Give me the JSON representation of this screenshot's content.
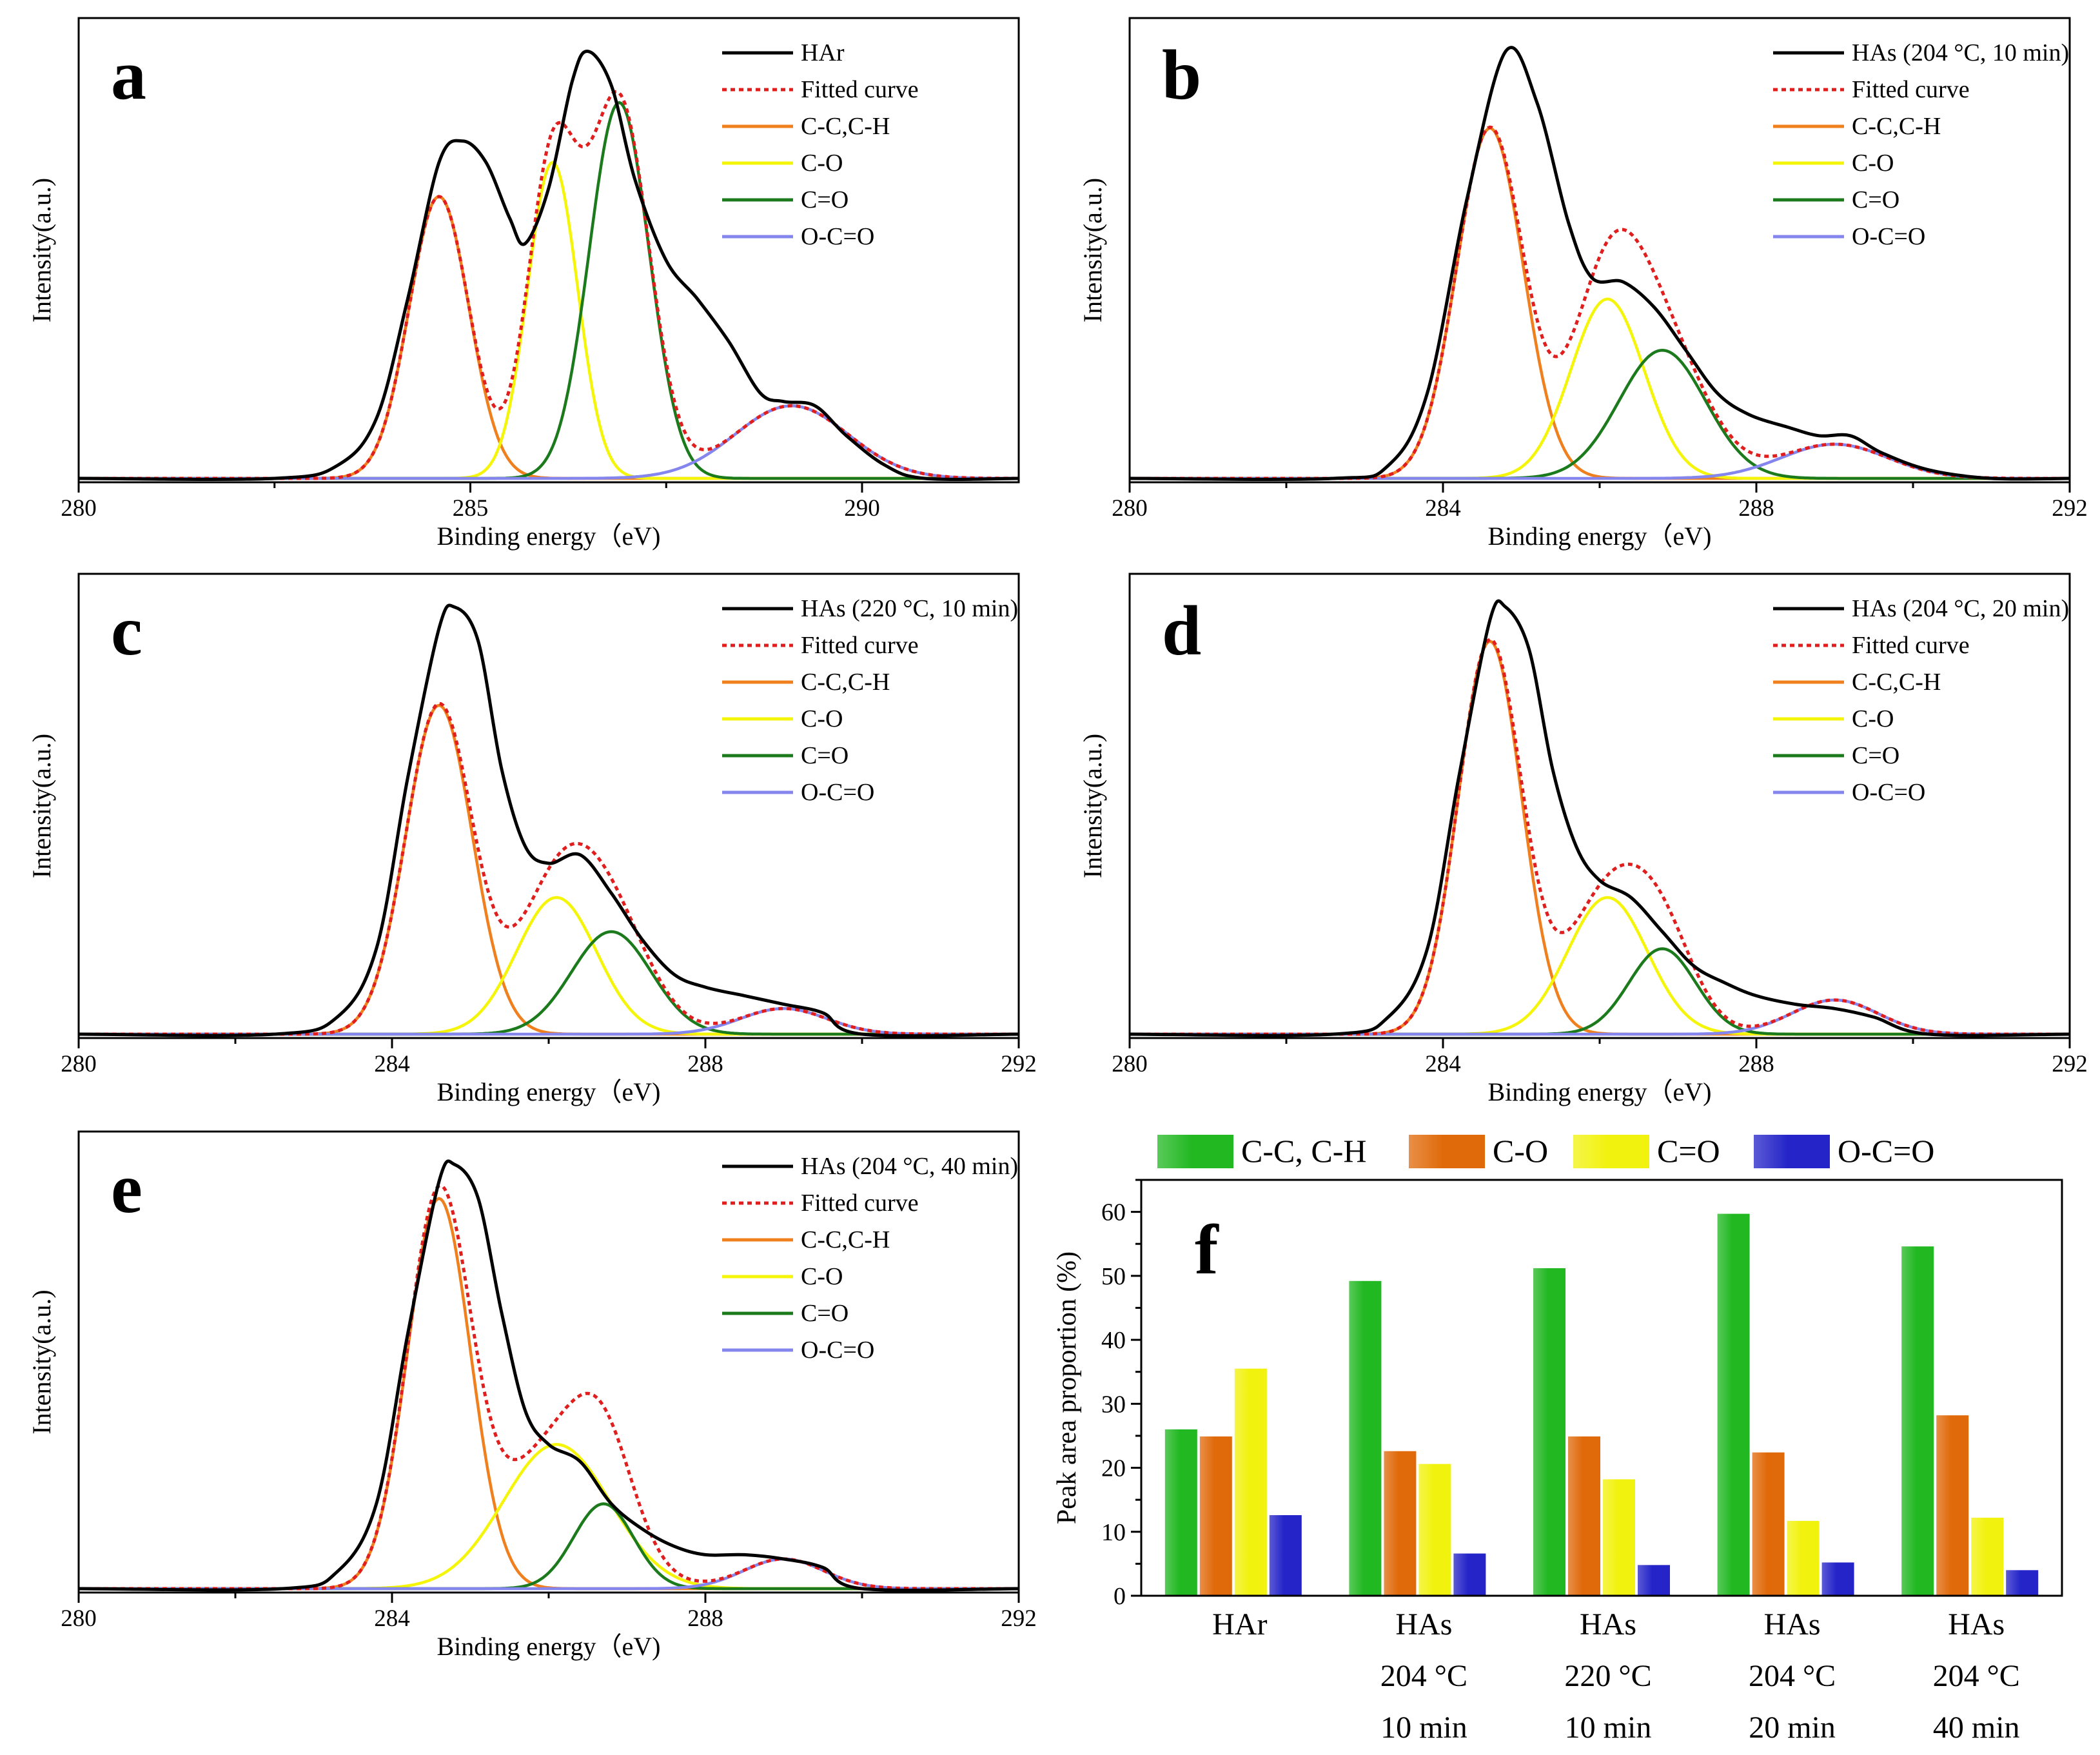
{
  "colors": {
    "frame": "#000000",
    "cc": "#f07f1e",
    "co": "#f5f50a",
    "cdo": "#1b7a1b",
    "oco": "#8585ee",
    "fit": "#e01e1e",
    "bar_cc": "#22b822",
    "bar_co": "#e06a0a",
    "bar_cdo": "#f2f20f",
    "bar_oco": "#2424c8"
  },
  "chart_data": [
    {
      "type": "line",
      "panel": "a",
      "xlabel": "Binding energy（eV)",
      "ylabel": "Intensity(a.u.)",
      "xlim": [
        280,
        292
      ],
      "xticks": [
        280,
        285,
        290
      ],
      "legend_position": "top-right",
      "legend": [
        "HAr",
        "Fitted curve",
        "C-C,C-H",
        "C-O",
        "C=O",
        "O-C=O"
      ],
      "components": [
        {
          "name": "C-C,C-H",
          "center": 284.6,
          "height": 0.66,
          "fwhm": 0.9
        },
        {
          "name": "C-O",
          "center": 286.05,
          "height": 0.74,
          "fwhm": 0.75
        },
        {
          "name": "C=O",
          "center": 286.9,
          "height": 0.88,
          "fwhm": 0.9
        },
        {
          "name": "O-C=O",
          "center": 289.1,
          "height": 0.17,
          "fwhm": 1.7
        }
      ],
      "measured": {
        "name": "HAr",
        "x": [
          280,
          282.5,
          283.3,
          283.8,
          284.2,
          284.6,
          284.9,
          285.2,
          285.5,
          285.7,
          286.0,
          286.3,
          286.5,
          286.8,
          287.1,
          287.5,
          287.9,
          288.3,
          288.7,
          289.0,
          289.4,
          289.8,
          290.3,
          290.8,
          292
        ],
        "y": [
          0.0,
          0.0,
          0.03,
          0.14,
          0.42,
          0.74,
          0.79,
          0.74,
          0.61,
          0.55,
          0.68,
          0.93,
          1.0,
          0.92,
          0.7,
          0.51,
          0.42,
          0.32,
          0.2,
          0.18,
          0.17,
          0.1,
          0.03,
          0.0,
          0.0
        ]
      }
    },
    {
      "type": "line",
      "panel": "b",
      "xlabel": "Binding energy（eV)",
      "ylabel": "Intensity(a.u.)",
      "xlim": [
        280,
        292
      ],
      "xticks": [
        280,
        284,
        288,
        292
      ],
      "legend_position": "top-right",
      "legend": [
        "HAs (204 °C, 10 min)",
        "Fitted curve",
        "C-C,C-H",
        "C-O",
        "C=O",
        "O-C=O"
      ],
      "components": [
        {
          "name": "C-C,C-H",
          "center": 284.6,
          "height": 0.82,
          "fwhm": 1.0
        },
        {
          "name": "C-O",
          "center": 286.1,
          "height": 0.42,
          "fwhm": 1.1
        },
        {
          "name": "C=O",
          "center": 286.8,
          "height": 0.3,
          "fwhm": 1.3
        },
        {
          "name": "O-C=O",
          "center": 289.0,
          "height": 0.08,
          "fwhm": 1.6
        }
      ],
      "measured": {
        "name": "HAs (204 °C, 10 min)",
        "x": [
          280,
          282.6,
          283.3,
          283.8,
          284.3,
          284.8,
          285.2,
          285.6,
          285.9,
          286.3,
          286.7,
          287.1,
          287.5,
          287.9,
          288.4,
          288.8,
          289.2,
          289.6,
          290.2,
          291,
          292
        ],
        "y": [
          0.0,
          0.0,
          0.03,
          0.2,
          0.65,
          1.0,
          0.88,
          0.6,
          0.47,
          0.46,
          0.4,
          0.3,
          0.2,
          0.15,
          0.12,
          0.1,
          0.1,
          0.06,
          0.02,
          0.0,
          0.0
        ]
      }
    },
    {
      "type": "line",
      "panel": "c",
      "xlabel": "Binding energy（eV)",
      "ylabel": "Intensity(a.u.)",
      "xlim": [
        280,
        292
      ],
      "xticks": [
        280,
        284,
        288,
        292
      ],
      "legend_position": "top-right",
      "legend": [
        "HAs (220 °C, 10 min)",
        "Fitted curve",
        "C-C,C-H",
        "C-O",
        "C=O",
        "O-C=O"
      ],
      "components": [
        {
          "name": "C-C,C-H",
          "center": 284.6,
          "height": 0.77,
          "fwhm": 1.0
        },
        {
          "name": "C-O",
          "center": 286.1,
          "height": 0.32,
          "fwhm": 1.2
        },
        {
          "name": "C=O",
          "center": 286.8,
          "height": 0.24,
          "fwhm": 1.2
        },
        {
          "name": "O-C=O",
          "center": 289.0,
          "height": 0.06,
          "fwhm": 1.3
        }
      ],
      "measured": {
        "name": "HAs (220 °C, 10 min)",
        "x": [
          280,
          282.5,
          283.3,
          283.8,
          284.2,
          284.6,
          284.8,
          285.1,
          285.4,
          285.7,
          286.0,
          286.4,
          286.8,
          287.2,
          287.6,
          288.0,
          288.5,
          289.0,
          289.5,
          290.0,
          292
        ],
        "y": [
          0.0,
          0.0,
          0.04,
          0.2,
          0.6,
          0.95,
          1.0,
          0.92,
          0.62,
          0.44,
          0.4,
          0.42,
          0.33,
          0.22,
          0.14,
          0.11,
          0.09,
          0.07,
          0.05,
          0.0,
          0.0
        ]
      }
    },
    {
      "type": "line",
      "panel": "d",
      "xlabel": "Binding energy（eV)",
      "ylabel": "Intensity(a.u.)",
      "xlim": [
        280,
        292
      ],
      "xticks": [
        280,
        284,
        288,
        292
      ],
      "legend_position": "top-right",
      "legend": [
        "HAs (204 °C, 20 min)",
        "Fitted curve",
        "C-C,C-H",
        "C-O",
        "C=O",
        "O-C=O"
      ],
      "components": [
        {
          "name": "C-C,C-H",
          "center": 284.6,
          "height": 0.92,
          "fwhm": 0.95
        },
        {
          "name": "C-O",
          "center": 286.1,
          "height": 0.32,
          "fwhm": 1.2
        },
        {
          "name": "C=O",
          "center": 286.8,
          "height": 0.2,
          "fwhm": 1.0
        },
        {
          "name": "O-C=O",
          "center": 289.0,
          "height": 0.08,
          "fwhm": 1.3
        }
      ],
      "measured": {
        "name": "HAs (204 °C, 20 min)",
        "x": [
          280,
          282.6,
          283.3,
          283.8,
          284.2,
          284.6,
          284.8,
          285.1,
          285.4,
          285.7,
          286.0,
          286.4,
          286.8,
          287.2,
          287.6,
          288.0,
          288.5,
          289.0,
          289.5,
          290.2,
          292
        ],
        "y": [
          0.0,
          0.0,
          0.04,
          0.2,
          0.6,
          0.97,
          1.0,
          0.9,
          0.62,
          0.44,
          0.36,
          0.32,
          0.24,
          0.16,
          0.12,
          0.09,
          0.07,
          0.06,
          0.04,
          0.0,
          0.0
        ]
      }
    },
    {
      "type": "line",
      "panel": "e",
      "xlabel": "Binding energy（eV)",
      "ylabel": "Intensity(a.u.)",
      "xlim": [
        280,
        292
      ],
      "xticks": [
        280,
        284,
        288,
        292
      ],
      "legend_position": "top-right",
      "legend": [
        "HAs (204 °C, 40 min)",
        "Fitted curve",
        "C-C,C-H",
        "C-O",
        "C=O",
        "O-C=O"
      ],
      "components": [
        {
          "name": "C-C,C-H",
          "center": 284.6,
          "height": 0.92,
          "fwhm": 0.95
        },
        {
          "name": "C-O",
          "center": 286.1,
          "height": 0.34,
          "fwhm": 1.6
        },
        {
          "name": "C=O",
          "center": 286.7,
          "height": 0.2,
          "fwhm": 0.9
        },
        {
          "name": "O-C=O",
          "center": 289.0,
          "height": 0.07,
          "fwhm": 1.2
        }
      ],
      "measured": {
        "name": "HAs (204 °C, 40 min)",
        "x": [
          280,
          282.6,
          283.3,
          283.8,
          284.2,
          284.6,
          284.8,
          285.1,
          285.4,
          285.7,
          286.0,
          286.4,
          286.8,
          287.2,
          287.6,
          288.0,
          288.5,
          289.0,
          289.5,
          290.0,
          292
        ],
        "y": [
          0.0,
          0.0,
          0.04,
          0.2,
          0.6,
          0.96,
          1.0,
          0.92,
          0.65,
          0.42,
          0.34,
          0.3,
          0.2,
          0.14,
          0.1,
          0.08,
          0.08,
          0.07,
          0.05,
          0.0,
          0.0
        ]
      }
    },
    {
      "type": "bar",
      "panel": "f",
      "ylabel": "Peak area proportion (%)",
      "ylim": [
        0,
        65
      ],
      "yticks": [
        0,
        10,
        20,
        30,
        40,
        50,
        60
      ],
      "legend_position": "top",
      "categories": [
        [
          "HAr"
        ],
        [
          "HAs",
          "204 °C",
          "10 min"
        ],
        [
          "HAs",
          "220 °C",
          "10 min"
        ],
        [
          "HAs",
          "204 °C",
          "20 min"
        ],
        [
          "HAs",
          "204 °C",
          "40 min"
        ]
      ],
      "series": [
        {
          "name": "C-C, C-H",
          "values": [
            26,
            49.2,
            51.2,
            59.7,
            54.6
          ]
        },
        {
          "name": "C-O",
          "values": [
            24.9,
            22.6,
            24.9,
            22.4,
            28.2
          ]
        },
        {
          "name": "C=O",
          "values": [
            35.5,
            20.6,
            18.2,
            11.7,
            12.2
          ]
        },
        {
          "name": "O-C=O",
          "values": [
            12.6,
            6.6,
            4.8,
            5.2,
            4.0
          ]
        }
      ]
    }
  ]
}
